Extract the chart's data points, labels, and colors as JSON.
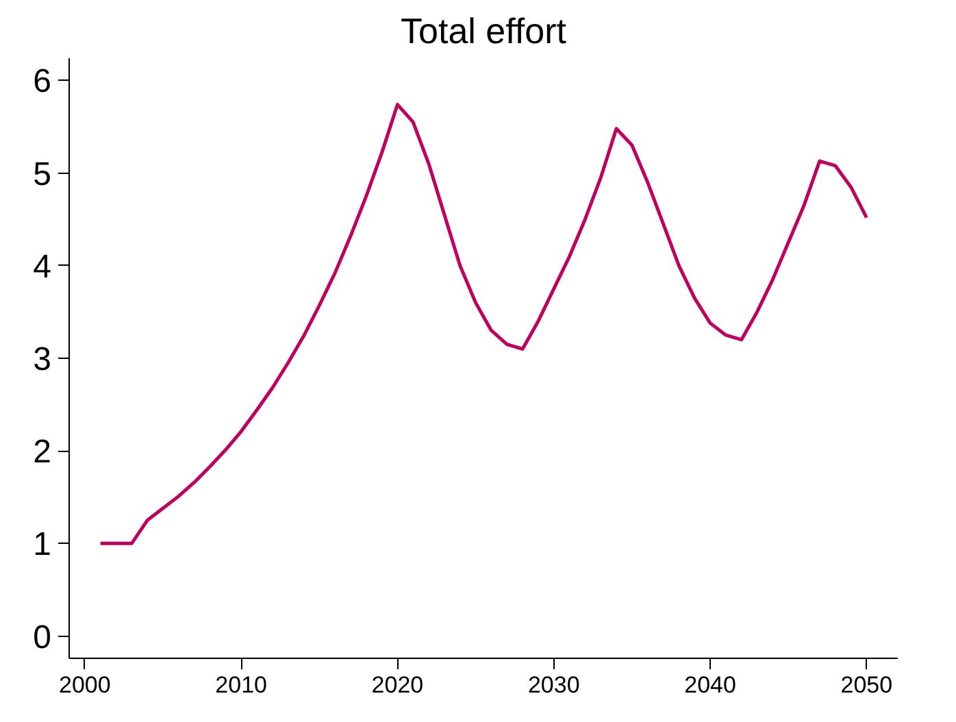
{
  "chart_data": {
    "type": "line",
    "title": "Total effort",
    "x": [
      2001,
      2002,
      2003,
      2004,
      2005,
      2006,
      2007,
      2008,
      2009,
      2010,
      2011,
      2012,
      2013,
      2014,
      2015,
      2016,
      2017,
      2018,
      2019,
      2020,
      2021,
      2022,
      2023,
      2024,
      2025,
      2026,
      2027,
      2028,
      2029,
      2030,
      2031,
      2032,
      2033,
      2034,
      2035,
      2036,
      2037,
      2038,
      2039,
      2040,
      2041,
      2042,
      2043,
      2044,
      2045,
      2046,
      2047,
      2048,
      2049,
      2050
    ],
    "series": [
      {
        "color": "#c0005f",
        "values": [
          1.0,
          1.0,
          1.0,
          1.25,
          1.38,
          1.51,
          1.66,
          1.83,
          2.01,
          2.21,
          2.44,
          2.68,
          2.95,
          3.24,
          3.57,
          3.92,
          4.32,
          4.75,
          5.22,
          5.74,
          5.55,
          5.1,
          4.55,
          4.0,
          3.6,
          3.3,
          3.15,
          3.1,
          3.4,
          3.75,
          4.1,
          4.5,
          4.95,
          5.48,
          5.3,
          4.9,
          4.45,
          4.0,
          3.65,
          3.38,
          3.25,
          3.2,
          3.5,
          3.85,
          4.25,
          4.65,
          5.13,
          5.08,
          4.85,
          4.52
        ]
      }
    ],
    "xlim": [
      1999,
      2052
    ],
    "ylim": [
      -0.24,
      6.24
    ],
    "xticks": [
      2000,
      2010,
      2020,
      2030,
      2040,
      2050
    ],
    "yticks": [
      0,
      1,
      2,
      3,
      4,
      5,
      6
    ],
    "grid": false,
    "marker": "none",
    "line_style": "solid"
  }
}
